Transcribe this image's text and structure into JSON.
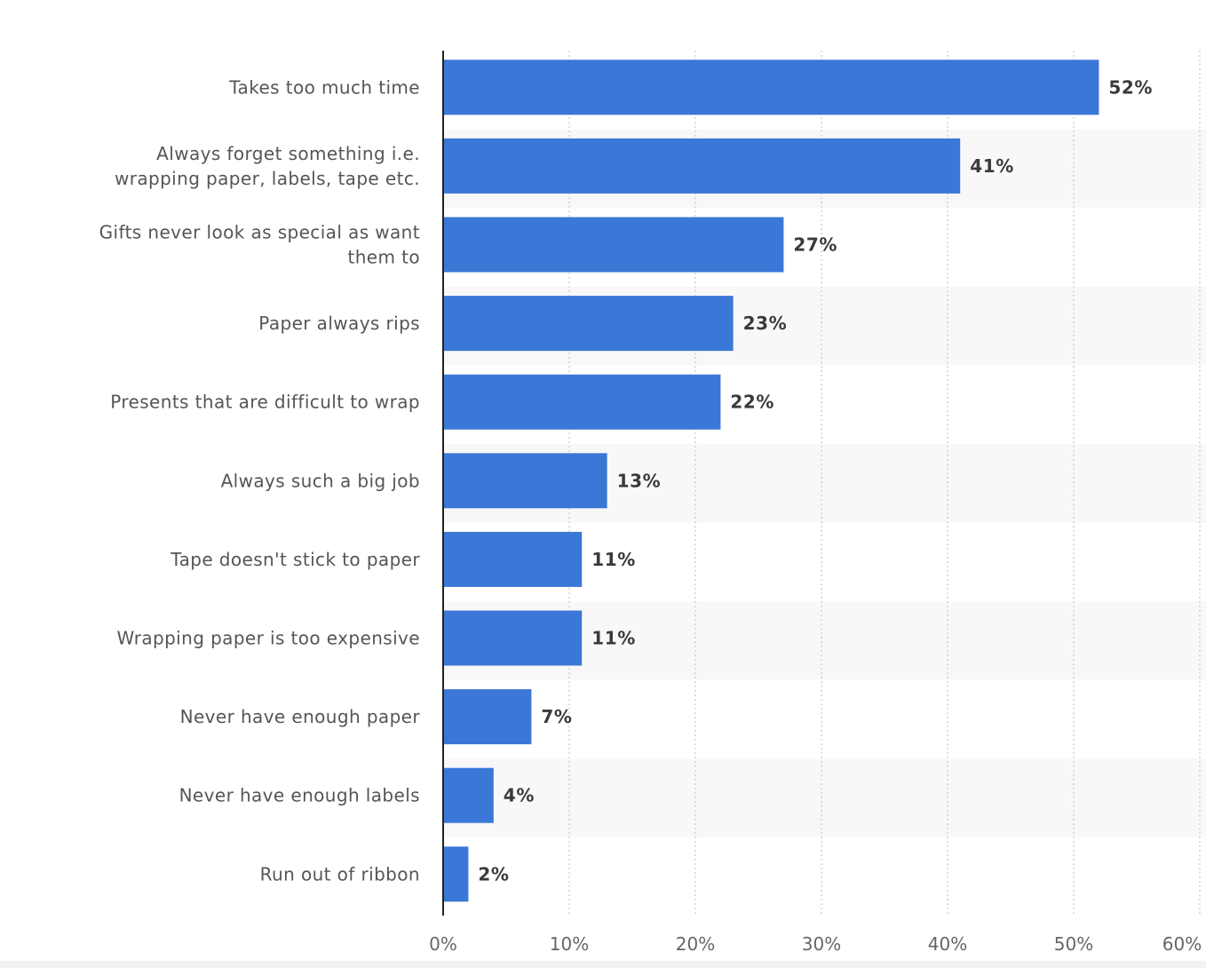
{
  "chart_data": {
    "type": "bar",
    "orientation": "horizontal",
    "categories": [
      "Takes too much time",
      "Always forget something i.e. wrapping paper, labels, tape etc.",
      "Gifts never look as special as want them to",
      "Paper always rips",
      "Presents that are difficult to wrap",
      "Always such a big job",
      "Tape doesn't stick to paper",
      "Wrapping paper is too expensive",
      "Never have enough paper",
      "Never have enough labels",
      "Run out of ribbon"
    ],
    "values": [
      52,
      41,
      27,
      23,
      22,
      13,
      11,
      11,
      7,
      4,
      2
    ],
    "value_labels": [
      "52%",
      "41%",
      "27%",
      "23%",
      "22%",
      "13%",
      "11%",
      "11%",
      "7%",
      "4%",
      "2%"
    ],
    "xticks": [
      "0%",
      "10%",
      "20%",
      "30%",
      "40%",
      "50%",
      "60%"
    ],
    "xlim": [
      0,
      60
    ],
    "grid": "vertical-dotted",
    "bar_color": "#3b77d6",
    "band_color": "#f8f8f8"
  }
}
